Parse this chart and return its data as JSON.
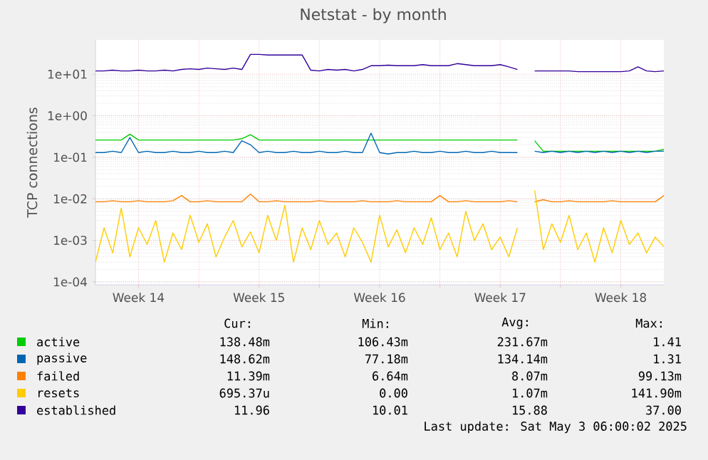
{
  "chart_data": {
    "type": "line",
    "title": "Netstat - by month",
    "ylabel": "TCP connections",
    "x": [
      "2025-04-01T00:00",
      "2025-04-01T12:00",
      "2025-04-02T00:00",
      "2025-04-02T12:00",
      "2025-04-03T00:00",
      "2025-04-03T12:00",
      "2025-04-04T00:00",
      "2025-04-04T12:00",
      "2025-04-05T00:00",
      "2025-04-05T12:00",
      "2025-04-06T00:00",
      "2025-04-06T12:00",
      "2025-04-07T00:00",
      "2025-04-07T12:00",
      "2025-04-08T00:00",
      "2025-04-08T12:00",
      "2025-04-09T00:00",
      "2025-04-09T12:00",
      "2025-04-10T00:00",
      "2025-04-10T12:00",
      "2025-04-11T00:00",
      "2025-04-11T12:00",
      "2025-04-12T00:00",
      "2025-04-12T12:00",
      "2025-04-13T00:00",
      "2025-04-13T12:00",
      "2025-04-14T00:00",
      "2025-04-14T12:00",
      "2025-04-15T00:00",
      "2025-04-15T12:00",
      "2025-04-16T00:00",
      "2025-04-16T12:00",
      "2025-04-17T00:00",
      "2025-04-17T12:00",
      "2025-04-18T00:00",
      "2025-04-18T12:00",
      "2025-04-19T00:00",
      "2025-04-19T12:00",
      "2025-04-20T00:00",
      "2025-04-20T12:00",
      "2025-04-21T00:00",
      "2025-04-21T12:00",
      "2025-04-22T00:00",
      "2025-04-22T12:00",
      "2025-04-23T00:00",
      "2025-04-23T12:00",
      "2025-04-24T00:00",
      "2025-04-24T12:00",
      "2025-04-25T00:00",
      "2025-04-25T12:00",
      "2025-04-26T00:00",
      "2025-04-26T12:00",
      "2025-04-27T00:00",
      "2025-04-27T12:00",
      "2025-04-28T00:00",
      "2025-04-28T12:00",
      "2025-04-29T00:00",
      "2025-04-29T12:00",
      "2025-04-30T00:00",
      "2025-04-30T12:00",
      "2025-05-01T00:00",
      "2025-05-01T12:00",
      "2025-05-02T00:00",
      "2025-05-02T12:00",
      "2025-05-03T00:00",
      "2025-05-03T12:00",
      "2025-05-04T00:00"
    ],
    "series": [
      {
        "name": "active",
        "color": "#00cc00",
        "values": [
          0.26,
          0.26,
          0.26,
          0.26,
          0.36,
          0.26,
          0.26,
          0.26,
          0.26,
          0.26,
          0.26,
          0.26,
          0.26,
          0.26,
          0.26,
          0.26,
          0.26,
          0.28,
          0.35,
          0.26,
          0.26,
          0.26,
          0.26,
          0.26,
          0.26,
          0.26,
          0.26,
          0.26,
          0.26,
          0.26,
          0.26,
          0.26,
          0.26,
          0.26,
          0.26,
          0.26,
          0.26,
          0.26,
          0.26,
          0.26,
          0.26,
          0.26,
          0.26,
          0.26,
          0.26,
          0.26,
          0.26,
          0.26,
          0.26,
          0.26,
          null,
          0.25,
          0.14,
          0.14,
          0.14,
          0.14,
          0.14,
          0.14,
          0.14,
          0.14,
          0.14,
          0.14,
          0.14,
          0.14,
          0.14,
          0.14,
          0.155
        ]
      },
      {
        "name": "passive",
        "color": "#0066b3",
        "values": [
          0.13,
          0.13,
          0.14,
          0.13,
          0.3,
          0.13,
          0.14,
          0.13,
          0.13,
          0.14,
          0.13,
          0.13,
          0.14,
          0.13,
          0.13,
          0.14,
          0.13,
          0.25,
          0.2,
          0.13,
          0.14,
          0.13,
          0.13,
          0.14,
          0.13,
          0.13,
          0.14,
          0.13,
          0.13,
          0.14,
          0.13,
          0.13,
          0.38,
          0.13,
          0.12,
          0.13,
          0.13,
          0.14,
          0.13,
          0.13,
          0.14,
          0.13,
          0.13,
          0.14,
          0.13,
          0.13,
          0.14,
          0.13,
          0.13,
          0.13,
          null,
          0.14,
          0.13,
          0.14,
          0.13,
          0.14,
          0.13,
          0.14,
          0.13,
          0.14,
          0.13,
          0.14,
          0.13,
          0.14,
          0.13,
          0.14,
          0.14
        ]
      },
      {
        "name": "failed",
        "color": "#ff8000",
        "values": [
          0.0085,
          0.0085,
          0.009,
          0.0085,
          0.0085,
          0.009,
          0.0085,
          0.0085,
          0.0085,
          0.009,
          0.012,
          0.0085,
          0.0085,
          0.009,
          0.0085,
          0.0085,
          0.0085,
          0.0085,
          0.013,
          0.0085,
          0.0085,
          0.009,
          0.0085,
          0.0085,
          0.0085,
          0.0085,
          0.009,
          0.0085,
          0.0085,
          0.0085,
          0.0085,
          0.009,
          0.0085,
          0.0085,
          0.0085,
          0.009,
          0.0085,
          0.0085,
          0.0085,
          0.0085,
          0.012,
          0.0085,
          0.0085,
          0.009,
          0.0085,
          0.0085,
          0.0085,
          0.0085,
          0.009,
          0.0085,
          null,
          0.0085,
          0.0095,
          0.0085,
          0.0085,
          0.009,
          0.0085,
          0.0085,
          0.0085,
          0.0085,
          0.009,
          0.0085,
          0.0085,
          0.0085,
          0.0085,
          0.0085,
          0.012
        ]
      },
      {
        "name": "resets",
        "color": "#ffcc00",
        "values": [
          0.0003,
          0.002,
          0.0005,
          0.006,
          0.0004,
          0.002,
          0.0008,
          0.003,
          0.0003,
          0.0015,
          0.0006,
          0.004,
          0.0009,
          0.0025,
          0.0004,
          0.0012,
          0.003,
          0.0007,
          0.0016,
          0.0005,
          0.004,
          0.001,
          0.007,
          0.0003,
          0.002,
          0.0006,
          0.003,
          0.0008,
          0.0015,
          0.0004,
          0.002,
          0.0009,
          0.0003,
          0.004,
          0.0007,
          0.0018,
          0.0005,
          0.002,
          0.0008,
          0.0035,
          0.0006,
          0.0015,
          0.0004,
          0.005,
          0.001,
          0.0025,
          0.0006,
          0.0012,
          0.0004,
          0.002,
          null,
          0.016,
          0.0006,
          0.0025,
          0.0009,
          0.004,
          0.0006,
          0.0015,
          0.0003,
          0.002,
          0.0005,
          0.003,
          0.0008,
          0.0015,
          0.0005,
          0.0012,
          0.0007
        ]
      },
      {
        "name": "established",
        "color": "#330099",
        "values": [
          12,
          12,
          12.5,
          12,
          12,
          12.5,
          12,
          12,
          12.5,
          12,
          13,
          13.5,
          13,
          14,
          13.5,
          13,
          14,
          13,
          30,
          30,
          29,
          29,
          29,
          29,
          29,
          12.5,
          12,
          13,
          12.5,
          13,
          12,
          13,
          16,
          16,
          16.5,
          16,
          16,
          16,
          17,
          16,
          16,
          16,
          18,
          17,
          16,
          16,
          16,
          17,
          15,
          13,
          null,
          12,
          12,
          12,
          12,
          12,
          11.5,
          11.5,
          11.5,
          11.5,
          11.5,
          11.5,
          12,
          15,
          12,
          11.5,
          12
        ]
      }
    ],
    "xlim": [
      "2025-04-01T00:00",
      "2025-05-04T00:00"
    ],
    "xticks": [
      {
        "value": "2025-04-03T12:00",
        "label": "Week 14"
      },
      {
        "value": "2025-04-07T00:00",
        "label": null
      },
      {
        "value": "2025-04-10T12:00",
        "label": "Week 15"
      },
      {
        "value": "2025-04-14T00:00",
        "label": null
      },
      {
        "value": "2025-04-17T12:00",
        "label": "Week 16"
      },
      {
        "value": "2025-04-21T00:00",
        "label": null
      },
      {
        "value": "2025-04-24T12:00",
        "label": "Week 17"
      },
      {
        "value": "2025-04-28T00:00",
        "label": null
      },
      {
        "value": "2025-05-01T12:00",
        "label": "Week 18"
      }
    ],
    "ylim": [
      8.5e-05,
      67
    ],
    "yticks": [
      {
        "value": 0.0001,
        "label": "1e-04"
      },
      {
        "value": 0.001,
        "label": "1e-03"
      },
      {
        "value": 0.01,
        "label": "1e-02"
      },
      {
        "value": 0.1,
        "label": "1e-01"
      },
      {
        "value": 1,
        "label": "1e+00"
      },
      {
        "value": 10,
        "label": "1e+01"
      }
    ],
    "log": "y",
    "grid": true,
    "legend": "bottom",
    "annotations": [
      "Cur:",
      "Min:",
      "Avg:",
      "Max:",
      "138.48m",
      "106.43m",
      "231.67m",
      "1.41",
      "148.62m",
      "77.18m",
      "134.14m",
      "1.31",
      "11.39m",
      "6.64m",
      "8.07m",
      "99.13m",
      "695.37u",
      "0.00",
      "1.07m",
      "141.90m",
      "11.96",
      "10.01",
      "15.88",
      "37.00",
      "Last update: Sat May  3 06:00:02 2025"
    ]
  }
}
